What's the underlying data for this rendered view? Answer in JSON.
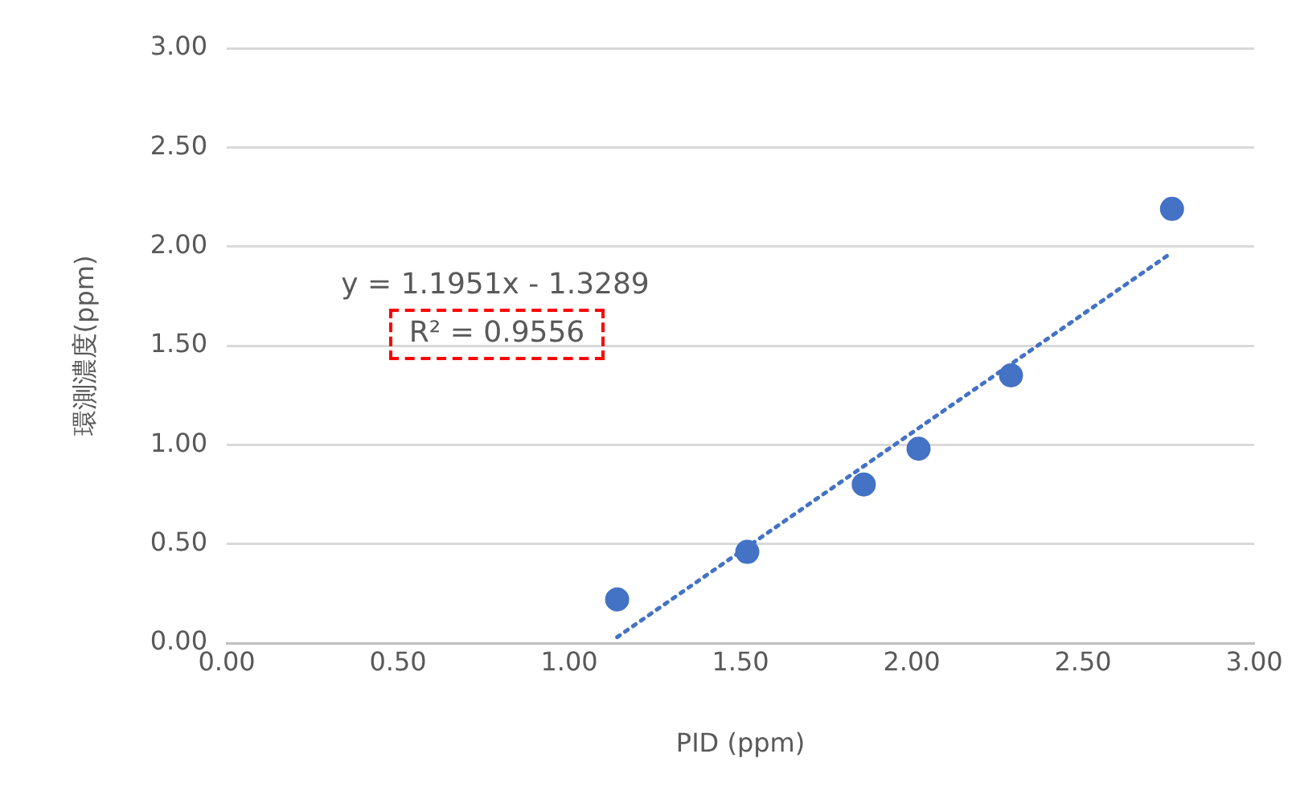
{
  "chart_data": {
    "type": "scatter",
    "xlabel": "PID (ppm)",
    "ylabel": "環測濃度(ppm)",
    "series": [
      {
        "color": "#4472c4",
        "x": [
          1.14,
          1.52,
          1.86,
          2.02,
          2.29,
          2.76
        ],
        "values": [
          0.22,
          0.46,
          0.8,
          0.98,
          1.35,
          2.19
        ]
      },
      {
        "type": "line",
        "color": "#4472c4",
        "x": [
          1.14,
          2.76
        ],
        "values": [
          0.03,
          1.97
        ],
        "line_style": "dotted",
        "marker": "none"
      }
    ],
    "xlim": [
      0,
      3
    ],
    "xticks": [
      {
        "value": 0,
        "label": "0.00"
      },
      {
        "value": 0.5,
        "label": "0.50"
      },
      {
        "value": 1,
        "label": "1.00"
      },
      {
        "value": 1.5,
        "label": "1.50"
      },
      {
        "value": 2,
        "label": "2.00"
      },
      {
        "value": 2.5,
        "label": "2.50"
      },
      {
        "value": 3,
        "label": "3.00"
      }
    ],
    "ylim": [
      0,
      3
    ],
    "yticks": [
      {
        "value": 0,
        "label": "0.00"
      },
      {
        "value": 0.5,
        "label": "0.50"
      },
      {
        "value": 1,
        "label": "1.00"
      },
      {
        "value": 1.5,
        "label": "1.50"
      },
      {
        "value": 2,
        "label": "2.00"
      },
      {
        "value": 2.5,
        "label": "2.50"
      },
      {
        "value": 3,
        "label": "3.00"
      }
    ],
    "grid": "y",
    "legend": false,
    "marker": "circle",
    "annotations": [
      "y = 1.1951x - 1.3289",
      "R² = 0.9556"
    ]
  }
}
